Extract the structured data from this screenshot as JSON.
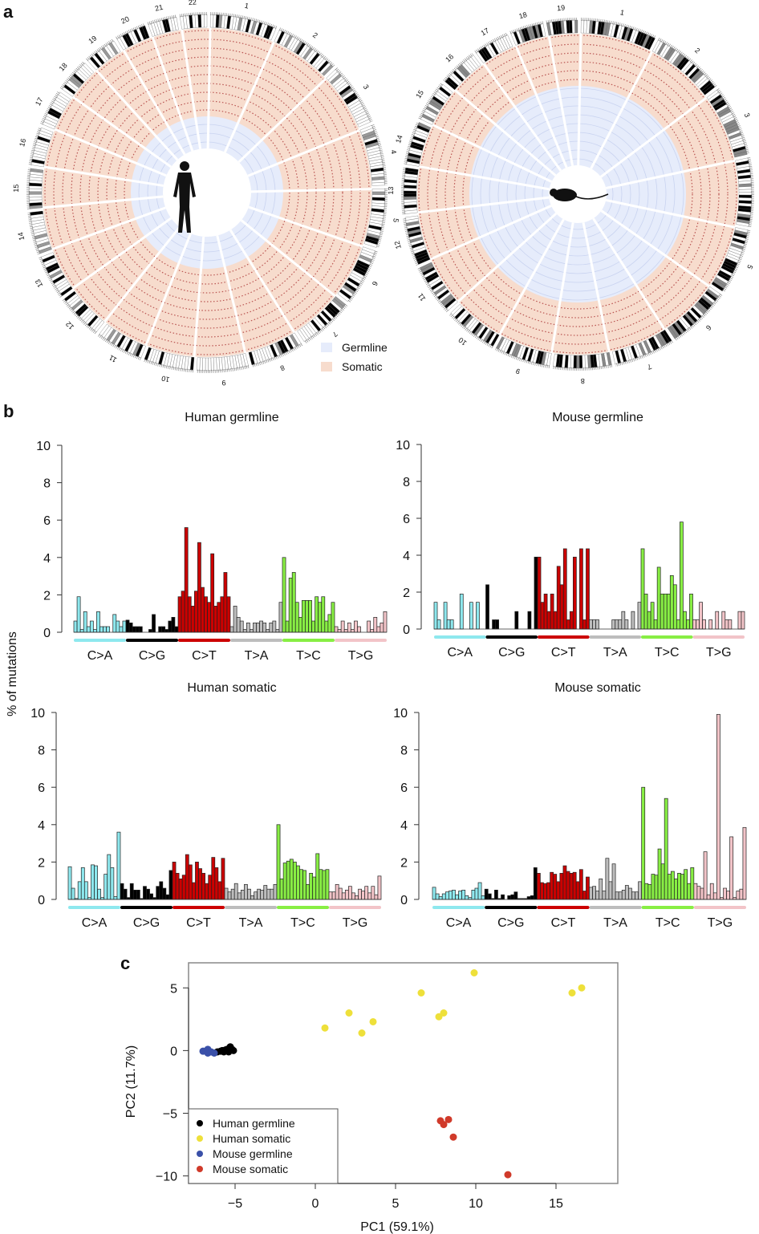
{
  "panels": {
    "a": "a",
    "b": "b",
    "c": "c"
  },
  "circos": {
    "legend": [
      {
        "label": "Germline",
        "color": "#e6ecfb"
      },
      {
        "label": "Somatic",
        "color": "#f7dccd"
      }
    ],
    "human_chromosomes": [
      "1",
      "2",
      "3",
      "4",
      "5",
      "6",
      "7",
      "8",
      "9",
      "10",
      "11",
      "12",
      "13",
      "14",
      "15",
      "16",
      "17",
      "18",
      "19",
      "20",
      "21",
      "22"
    ],
    "mouse_chromosomes": [
      "1",
      "2",
      "3",
      "4",
      "5",
      "6",
      "7",
      "8",
      "9",
      "10",
      "11",
      "12",
      "13",
      "14",
      "15",
      "16",
      "17",
      "18",
      "19"
    ],
    "icons": {
      "human": "human-silhouette-icon",
      "mouse": "mouse-silhouette-icon"
    }
  },
  "shared_ylabel": "% of mutations",
  "category_colors": {
    "C>A": "#8ee8ee",
    "C>G": "#000000",
    "C>T": "#cc0000",
    "T>A": "#bdbdbd",
    "T>C": "#88ee44",
    "T>G": "#f2c4c8"
  },
  "chart_data": [
    {
      "type": "bar",
      "title": "Human germline",
      "ylim": [
        0,
        10
      ],
      "yticks": [
        0,
        2,
        4,
        6,
        8,
        10
      ],
      "categories": [
        "C>A",
        "C>G",
        "C>T",
        "T>A",
        "T>C",
        "T>G"
      ],
      "values": {
        "C>A": [
          0.6,
          1.9,
          0.15,
          1.1,
          0.3,
          0.6,
          0.15,
          1.1,
          0.3,
          0.3,
          0.3,
          0,
          0.95,
          0.6,
          0.3,
          0.6
        ],
        "C>G": [
          0.65,
          0.5,
          0.3,
          0.3,
          0.3,
          0,
          0,
          0.15,
          0.95,
          0,
          0.3,
          0.3,
          0.15,
          0.6,
          0.8,
          0.3
        ],
        "C>T": [
          1.9,
          2.2,
          5.6,
          1.9,
          1.4,
          2.2,
          4.8,
          2.4,
          1.9,
          1.6,
          4.2,
          1.4,
          1.6,
          1.9,
          3.2,
          1.9
        ],
        "T>A": [
          0.3,
          1.4,
          0.8,
          0.6,
          0.15,
          0.5,
          0.15,
          0.5,
          0.5,
          0.6,
          0.5,
          0.15,
          0.5,
          0.6,
          0.15,
          1.6
        ],
        "T>C": [
          4.0,
          0.6,
          2.9,
          3.2,
          1.6,
          0.8,
          1.7,
          1.7,
          1.7,
          0.6,
          1.9,
          1.6,
          1.9,
          0.6,
          0.95,
          1.6
        ],
        "T>G": [
          0.3,
          0.15,
          0.6,
          0.15,
          0.5,
          0.15,
          0.6,
          0.3,
          0,
          0,
          0.6,
          0.15,
          0.8,
          0.3,
          0.5,
          1.1
        ]
      }
    },
    {
      "type": "bar",
      "title": "Mouse germline",
      "ylim": [
        0,
        10
      ],
      "yticks": [
        0,
        2,
        4,
        6,
        8,
        10
      ],
      "categories": [
        "C>A",
        "C>G",
        "C>T",
        "T>A",
        "T>C",
        "T>G"
      ],
      "values": {
        "C>A": [
          1.45,
          0.5,
          0,
          1.45,
          0.5,
          0.5,
          0,
          0,
          1.9,
          0,
          0,
          1.45,
          0,
          1.45,
          0,
          0
        ],
        "C>G": [
          2.4,
          0,
          0.5,
          0.5,
          0,
          0,
          0,
          0,
          0,
          0.95,
          0,
          0,
          0,
          0.95,
          0,
          3.9
        ],
        "C>T": [
          3.9,
          1.45,
          1.9,
          0.95,
          1.9,
          0.95,
          3.4,
          2.4,
          4.35,
          0.5,
          0.95,
          3.9,
          0,
          4.35,
          0.5,
          4.35
        ],
        "T>A": [
          0.5,
          0.5,
          0.5,
          0,
          0,
          0,
          0,
          0.5,
          0.5,
          0.5,
          0.95,
          0.5,
          0,
          0.95,
          0,
          1.45
        ],
        "T>C": [
          4.35,
          1.9,
          0.95,
          1.45,
          0.5,
          3.35,
          1.9,
          1.9,
          1.9,
          2.9,
          2.4,
          0.5,
          5.8,
          0.95,
          0.5,
          1.9
        ],
        "T>G": [
          0.5,
          0.5,
          1.45,
          0.5,
          0,
          0.5,
          0,
          0.95,
          0,
          0.95,
          0.5,
          0.5,
          0,
          0,
          0.95,
          0.95
        ]
      }
    },
    {
      "type": "bar",
      "title": "Human somatic",
      "ylim": [
        0,
        10
      ],
      "yticks": [
        0,
        2,
        4,
        6,
        8,
        10
      ],
      "categories": [
        "C>A",
        "C>G",
        "C>T",
        "T>A",
        "T>C",
        "T>G"
      ],
      "values": {
        "C>A": [
          1.75,
          0.6,
          0.05,
          0.95,
          1.7,
          0.95,
          0.1,
          1.85,
          1.8,
          0.55,
          0.1,
          1.35,
          2.4,
          1.7,
          0.15,
          3.6
        ],
        "C>G": [
          0.85,
          0.55,
          0.1,
          0.85,
          0.5,
          0.5,
          0.05,
          0.7,
          0.55,
          0.3,
          0.1,
          0.7,
          0.95,
          0.6,
          0.25,
          1.55
        ],
        "C>T": [
          2.0,
          1.4,
          1.1,
          1.3,
          2.4,
          1.85,
          0.9,
          2.0,
          1.65,
          1.4,
          0.85,
          1.3,
          2.25,
          1.7,
          0.95,
          2.2
        ],
        "T>A": [
          0.6,
          0.4,
          0.55,
          0.85,
          0.35,
          0.5,
          0.8,
          0.55,
          0.2,
          0.4,
          0.55,
          0.5,
          0.75,
          0.55,
          0.55,
          0.8
        ],
        "T>C": [
          4.0,
          1.1,
          1.95,
          2.05,
          2.15,
          2.0,
          1.8,
          1.6,
          1.55,
          0.8,
          1.4,
          1.2,
          2.45,
          1.6,
          1.55,
          1.6
        ],
        "T>G": [
          0.4,
          0.4,
          0.8,
          0.6,
          0.35,
          0.5,
          0.7,
          0.35,
          0.2,
          0.55,
          0.45,
          0.7,
          0.35,
          0.7,
          0.25,
          1.25
        ]
      }
    },
    {
      "type": "bar",
      "title": "Mouse somatic",
      "ylim": [
        0,
        10
      ],
      "yticks": [
        0,
        2,
        4,
        6,
        8,
        10
      ],
      "categories": [
        "C>A",
        "C>G",
        "C>T",
        "T>A",
        "T>C",
        "T>G"
      ],
      "values": {
        "C>A": [
          0.65,
          0.3,
          0.15,
          0.3,
          0.4,
          0.45,
          0.5,
          0.25,
          0.45,
          0.5,
          0.2,
          0.1,
          0.5,
          0.6,
          0.9,
          0.2
        ],
        "C>G": [
          0.55,
          0.3,
          0.05,
          0.5,
          0.05,
          0.25,
          0,
          0.2,
          0.25,
          0.4,
          0.05,
          0.05,
          0.05,
          0.15,
          0.2,
          1.7
        ],
        "C>T": [
          1.4,
          0.9,
          0.85,
          0.9,
          1.45,
          1.35,
          0.95,
          1.4,
          1.8,
          1.5,
          1.4,
          1.45,
          0.95,
          1.6,
          0.45,
          1.2
        ],
        "T>A": [
          0.65,
          0.7,
          0.45,
          1.1,
          0.45,
          2.2,
          0.95,
          1.9,
          0.4,
          0.4,
          0.5,
          0.75,
          0.6,
          0.4,
          0.4,
          0.95
        ],
        "T>C": [
          6.0,
          0.85,
          0.8,
          1.35,
          1.3,
          2.7,
          1.9,
          5.4,
          1.35,
          1.5,
          1.1,
          1.4,
          1.35,
          1.6,
          0.85,
          1.7
        ],
        "T>G": [
          0.85,
          0.7,
          0.6,
          2.55,
          0.25,
          0.85,
          0.35,
          9.9,
          0.1,
          0.6,
          0.45,
          3.35,
          0.1,
          0.45,
          0.55,
          3.85
        ]
      }
    },
    {
      "type": "scatter",
      "xlabel": "PC1 (59.1%)",
      "ylabel": "PC2 (11.7%)",
      "xlim": [
        -7.9,
        18.85
      ],
      "ylim": [
        -10.6,
        7
      ],
      "xticks": [
        -5,
        0,
        5,
        10,
        15
      ],
      "yticks": [
        -10,
        -5,
        0,
        5
      ],
      "legend_position": "bottom-left",
      "series": [
        {
          "name": "Human germline",
          "color": "#000000",
          "points": [
            [
              -6.1,
              -0.1
            ],
            [
              -5.9,
              -0.05
            ],
            [
              -5.8,
              0
            ],
            [
              -5.6,
              0.05
            ],
            [
              -5.5,
              0.1
            ],
            [
              -5.3,
              0.3
            ],
            [
              -5.4,
              -0.1
            ],
            [
              -5.1,
              0.0
            ],
            [
              -5.7,
              -0.1
            ],
            [
              -5.2,
              0.1
            ]
          ]
        },
        {
          "name": "Human somatic",
          "color": "#eee03a",
          "points": [
            [
              0.6,
              1.8
            ],
            [
              2.1,
              3.0
            ],
            [
              2.9,
              1.4
            ],
            [
              3.6,
              2.3
            ],
            [
              6.6,
              4.6
            ],
            [
              7.7,
              2.7
            ],
            [
              8.0,
              3.0
            ],
            [
              9.9,
              6.2
            ],
            [
              16.0,
              4.6
            ],
            [
              16.6,
              5.0
            ]
          ]
        },
        {
          "name": "Mouse germline",
          "color": "#3a50a8",
          "points": [
            [
              -7.0,
              -0.05
            ],
            [
              -6.7,
              0.1
            ],
            [
              -6.7,
              -0.2
            ],
            [
              -6.3,
              -0.2
            ],
            [
              -6.5,
              -0.1
            ]
          ]
        },
        {
          "name": "Mouse somatic",
          "color": "#d03a2a",
          "points": [
            [
              7.8,
              -5.6
            ],
            [
              8.0,
              -5.9
            ],
            [
              8.3,
              -5.5
            ],
            [
              8.6,
              -6.9
            ],
            [
              12.0,
              -9.9
            ]
          ]
        }
      ]
    }
  ]
}
